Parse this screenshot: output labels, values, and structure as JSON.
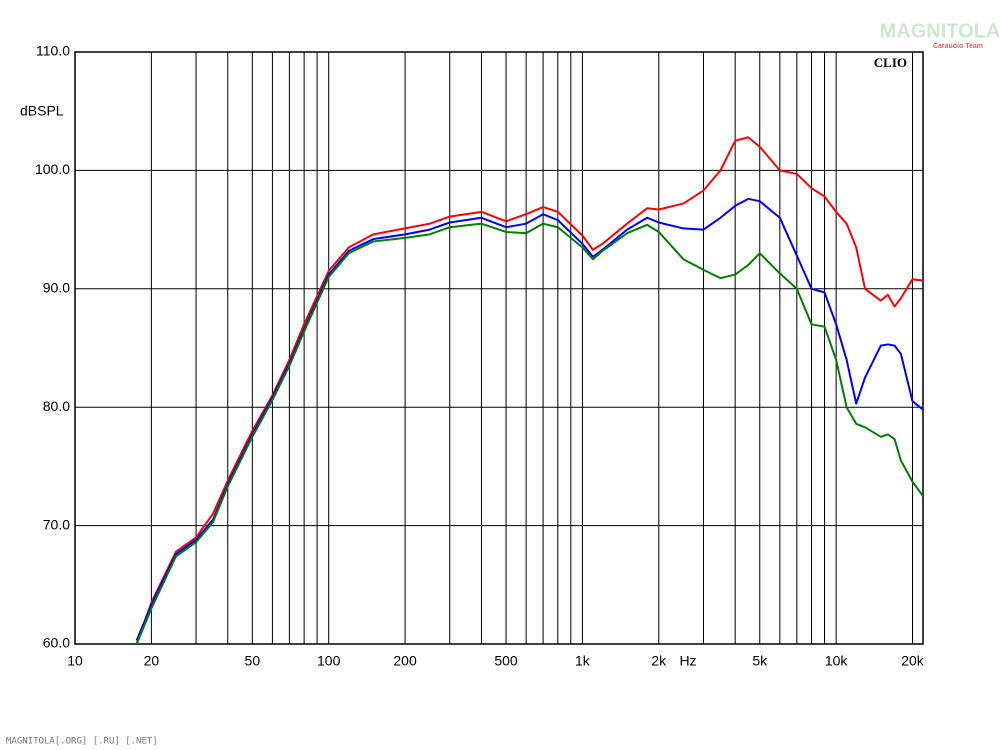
{
  "chart_data": {
    "type": "line",
    "log_x": true,
    "grid": true,
    "ylabel": "dBSPL",
    "xlabel": "Hz",
    "annotation": "CLIO",
    "watermark": "MAGNITOLA",
    "watermark_sub": "Caraudio Team",
    "footer": "MAGNITOLA[.ORG] [.RU] [.NET]",
    "xlim": [
      10,
      22000
    ],
    "ylim": [
      60,
      110
    ],
    "yticks": [
      {
        "value": 60,
        "label": "60.0"
      },
      {
        "value": 70,
        "label": "70.0"
      },
      {
        "value": 80,
        "label": "80.0"
      },
      {
        "value": 90,
        "label": "90.0"
      },
      {
        "value": 100,
        "label": "100.0"
      },
      {
        "value": 110,
        "label": "110.0"
      }
    ],
    "xticks": [
      10,
      20,
      50,
      100,
      200,
      500,
      {
        "value": 1000,
        "label": "1k"
      },
      {
        "value": 2000,
        "label": "2k"
      },
      {
        "value": 5000,
        "label": "5k"
      },
      {
        "value": 10000,
        "label": "10k"
      },
      {
        "value": 20000,
        "label": "20k"
      }
    ],
    "xminor": [
      30,
      40,
      60,
      70,
      80,
      90,
      300,
      400,
      600,
      700,
      800,
      900,
      3000,
      4000,
      6000,
      7000,
      8000,
      9000
    ],
    "x": [
      17.5,
      20,
      25,
      30,
      35,
      40,
      50,
      60,
      70,
      80,
      100,
      120,
      150,
      200,
      250,
      300,
      400,
      500,
      600,
      700,
      800,
      1000,
      1100,
      1200,
      1500,
      1800,
      2000,
      2500,
      3000,
      3500,
      4000,
      4500,
      5000,
      6000,
      7000,
      8000,
      9000,
      10000,
      11000,
      12000,
      13000,
      15000,
      16000,
      17000,
      18000,
      20000,
      22000
    ],
    "series": [
      {
        "color": "#ff0000",
        "values": [
          60,
          63.5,
          67.8,
          69,
          71,
          73.8,
          78,
          81,
          84,
          87,
          91.5,
          93.5,
          94.6,
          95.1,
          95.5,
          96.1,
          96.5,
          95.7,
          96.3,
          96.9,
          96.5,
          94.5,
          93.3,
          93.8,
          95.5,
          96.8,
          96.7,
          97.2,
          98.3,
          100,
          102.5,
          102.8,
          102,
          100,
          99.7,
          98.5,
          97.8,
          96.5,
          95.5,
          93.5,
          90,
          89,
          89.5,
          88.5,
          89.2,
          90.8,
          90.7
        ]
      },
      {
        "color": "#0000ff",
        "values": [
          60.3,
          63.3,
          67.6,
          68.8,
          70.5,
          73.5,
          77.7,
          80.8,
          83.7,
          86.6,
          91.2,
          93.2,
          94.2,
          94.6,
          95,
          95.6,
          96,
          95.2,
          95.5,
          96.3,
          95.8,
          93.8,
          92.7,
          93.3,
          95,
          96,
          95.6,
          95.1,
          95,
          96,
          97,
          97.6,
          97.4,
          96,
          92.8,
          90,
          89.7,
          87,
          84,
          80.3,
          82.5,
          85.2,
          85.3,
          85.2,
          84.5,
          80.5,
          79.8
        ]
      },
      {
        "color": "#008000",
        "values": [
          60,
          63,
          67.4,
          68.6,
          70.3,
          73.3,
          77.5,
          80.6,
          83.5,
          86.4,
          91,
          93,
          94,
          94.3,
          94.6,
          95.2,
          95.5,
          94.8,
          94.7,
          95.5,
          95.2,
          93.5,
          92.5,
          93.2,
          94.7,
          95.4,
          94.8,
          92.5,
          91.6,
          90.9,
          91.2,
          92,
          93,
          91.3,
          90,
          87,
          86.8,
          84,
          80,
          78.6,
          78.3,
          77.5,
          77.7,
          77.3,
          75.5,
          73.7,
          72.5
        ]
      }
    ]
  }
}
